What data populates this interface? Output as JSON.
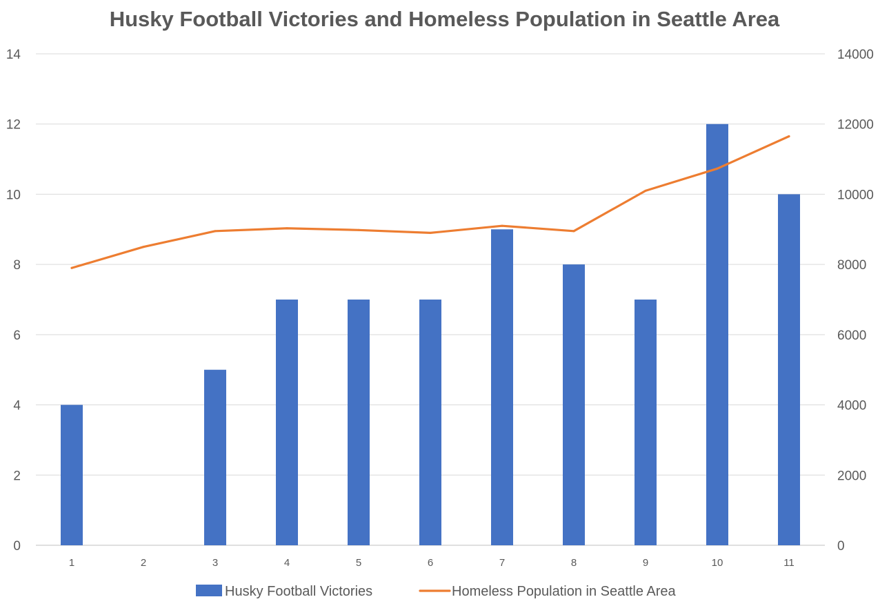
{
  "chart_data": {
    "type": "bar",
    "title": "Husky Football Victories and Homeless Population in Seattle Area",
    "categories": [
      "1",
      "2",
      "3",
      "4",
      "5",
      "6",
      "7",
      "8",
      "9",
      "10",
      "11"
    ],
    "series": [
      {
        "name": "Husky Football Victories",
        "type": "bar",
        "axis": "left",
        "color": "#4472C4",
        "values": [
          4,
          0,
          5,
          7,
          7,
          7,
          9,
          8,
          7,
          12,
          10
        ]
      },
      {
        "name": "Homeless Population in Seattle Area",
        "type": "line",
        "axis": "right",
        "color": "#ED7D31",
        "values": [
          7900,
          8500,
          8950,
          9030,
          8980,
          8900,
          9100,
          8950,
          10100,
          10730,
          11650
        ]
      }
    ],
    "y_left": {
      "ylim": [
        0,
        14
      ],
      "ticks": [
        "0",
        "2",
        "4",
        "6",
        "8",
        "10",
        "12",
        "14"
      ]
    },
    "y_right": {
      "ylim": [
        0,
        14000
      ],
      "ticks": [
        "0",
        "2000",
        "4000",
        "6000",
        "8000",
        "10000",
        "12000",
        "14000"
      ]
    },
    "grid": true,
    "legend_position": "bottom"
  }
}
